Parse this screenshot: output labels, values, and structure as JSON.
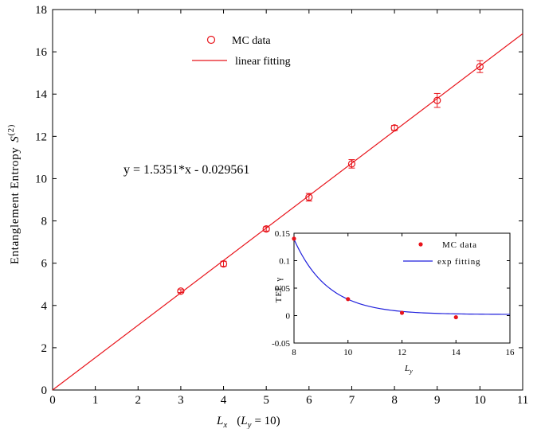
{
  "chart_data": [
    {
      "type": "scatter",
      "xlabel_symbol": "L",
      "xlabel_sub": "x",
      "xlabel_paren_open": "(",
      "xlabel_paren_symbol": "L",
      "xlabel_paren_sub": "y",
      "xlabel_paren_rest": "= 10)",
      "ylabel_text": "Entanglement Entropy",
      "ylabel_symbol": "S",
      "ylabel_sup": "(2)",
      "xlim": [
        0,
        11
      ],
      "ylim": [
        0,
        18
      ],
      "xticks": [
        0,
        1,
        2,
        3,
        4,
        5,
        6,
        7,
        8,
        9,
        10,
        11
      ],
      "yticks": [
        0,
        2,
        4,
        6,
        8,
        10,
        12,
        14,
        16,
        18
      ],
      "grid": false,
      "legend_position": "top-center",
      "fit_equation": "y = 1.5351*x - 0.029561",
      "colors": {
        "data": "#e8141b",
        "fit": "#e8141b"
      },
      "series": [
        {
          "name": "MC data",
          "marker": "open-circle",
          "x": [
            3,
            4,
            5,
            6,
            7,
            8,
            9,
            10
          ],
          "y": [
            4.68,
            5.97,
            7.62,
            9.12,
            10.7,
            12.4,
            13.7,
            15.3
          ],
          "error": [
            0.07,
            0.12,
            0.1,
            0.18,
            0.2,
            0.12,
            0.33,
            0.28
          ]
        },
        {
          "name": "linear fitting",
          "kind": "line",
          "slope": 1.5351,
          "intercept": -0.029561,
          "x": [
            0,
            11
          ]
        }
      ]
    },
    {
      "type": "scatter",
      "role": "inset",
      "xlabel_symbol": "L",
      "xlabel_sub": "y",
      "ylabel_text": "TEE γ",
      "xlim": [
        8,
        16
      ],
      "ylim": [
        -0.05,
        0.15
      ],
      "xticks": [
        8,
        10,
        12,
        14,
        16
      ],
      "yticks": [
        -0.05,
        0,
        0.05,
        0.1,
        0.15
      ],
      "ytick_labels": [
        "-0.05",
        "0",
        "0.05",
        "0.1",
        "0.15"
      ],
      "grid": false,
      "legend_position": "top-right",
      "colors": {
        "data": "#e8141b",
        "fit": "#1f1fdc"
      },
      "series": [
        {
          "name": "MC data",
          "marker": "filled-dot",
          "x": [
            8,
            10,
            12,
            14
          ],
          "y": [
            0.14,
            0.03,
            0.005,
            -0.003
          ]
        },
        {
          "name": "exp fitting",
          "kind": "exp-curve",
          "amplitude": 0.137,
          "rate": 0.8,
          "offset": 0.002,
          "x": [
            8,
            16
          ]
        }
      ]
    }
  ]
}
